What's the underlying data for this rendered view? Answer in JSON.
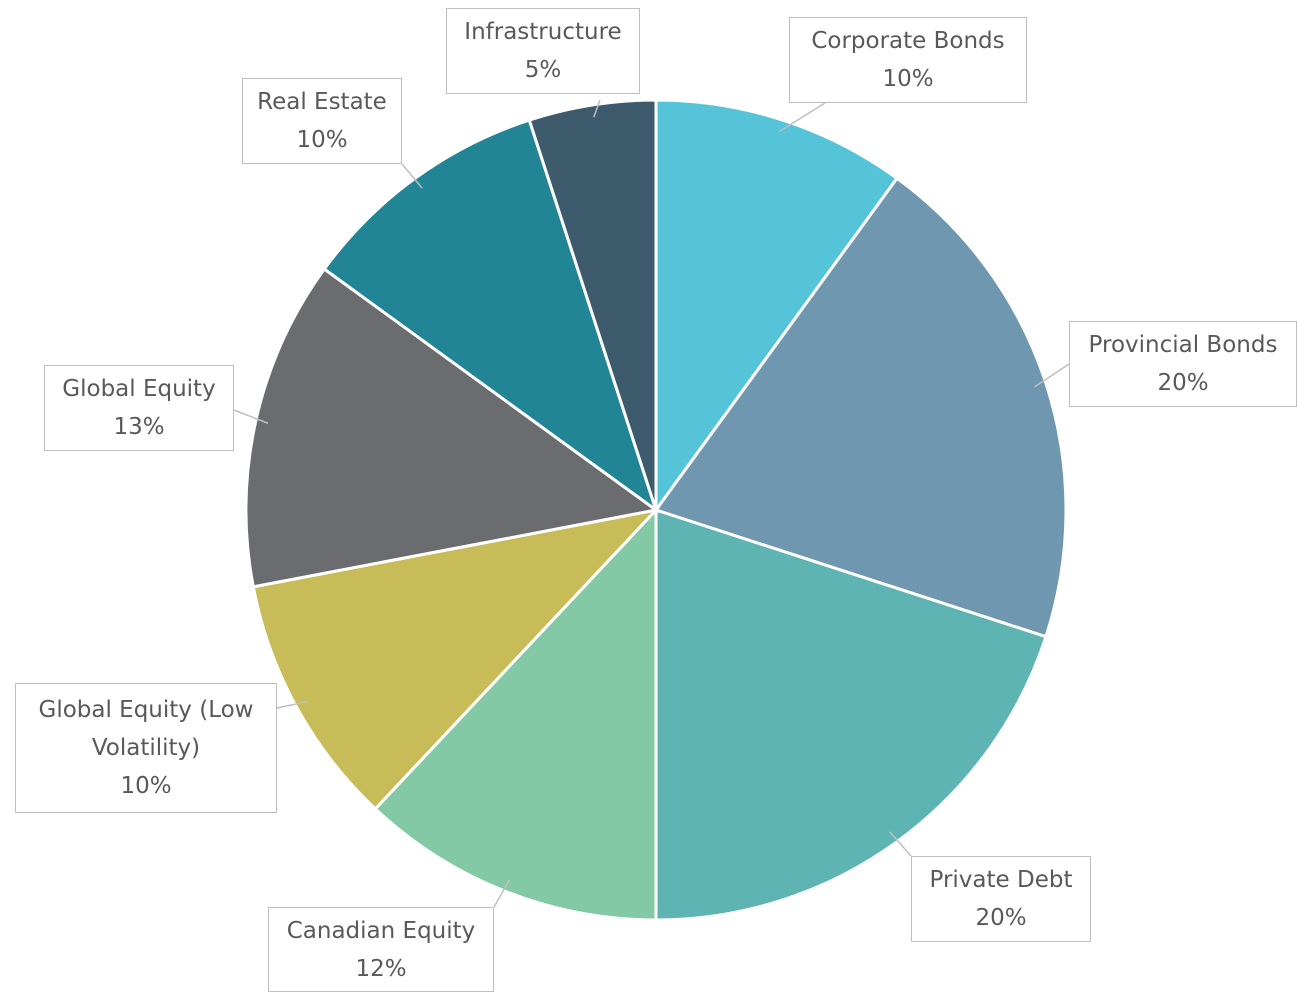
{
  "chart_data": {
    "type": "pie",
    "categories": [
      "Corporate Bonds",
      "Provincial Bonds",
      "Private Debt",
      "Canadian Equity",
      "Global Equity (Low Volatility)",
      "Global Equity",
      "Real Estate",
      "Infrastructure"
    ],
    "values": [
      10,
      20,
      20,
      12,
      10,
      13,
      10,
      5
    ],
    "value_labels": [
      "10%",
      "20%",
      "20%",
      "12%",
      "10%",
      "13%",
      "10%",
      "5%"
    ],
    "colors": [
      "#56c4d8",
      "#6f97b0",
      "#5eb3b3",
      "#84c9a5",
      "#c8bc58",
      "#6b6c70",
      "#218595",
      "#3d5b6d"
    ]
  }
}
